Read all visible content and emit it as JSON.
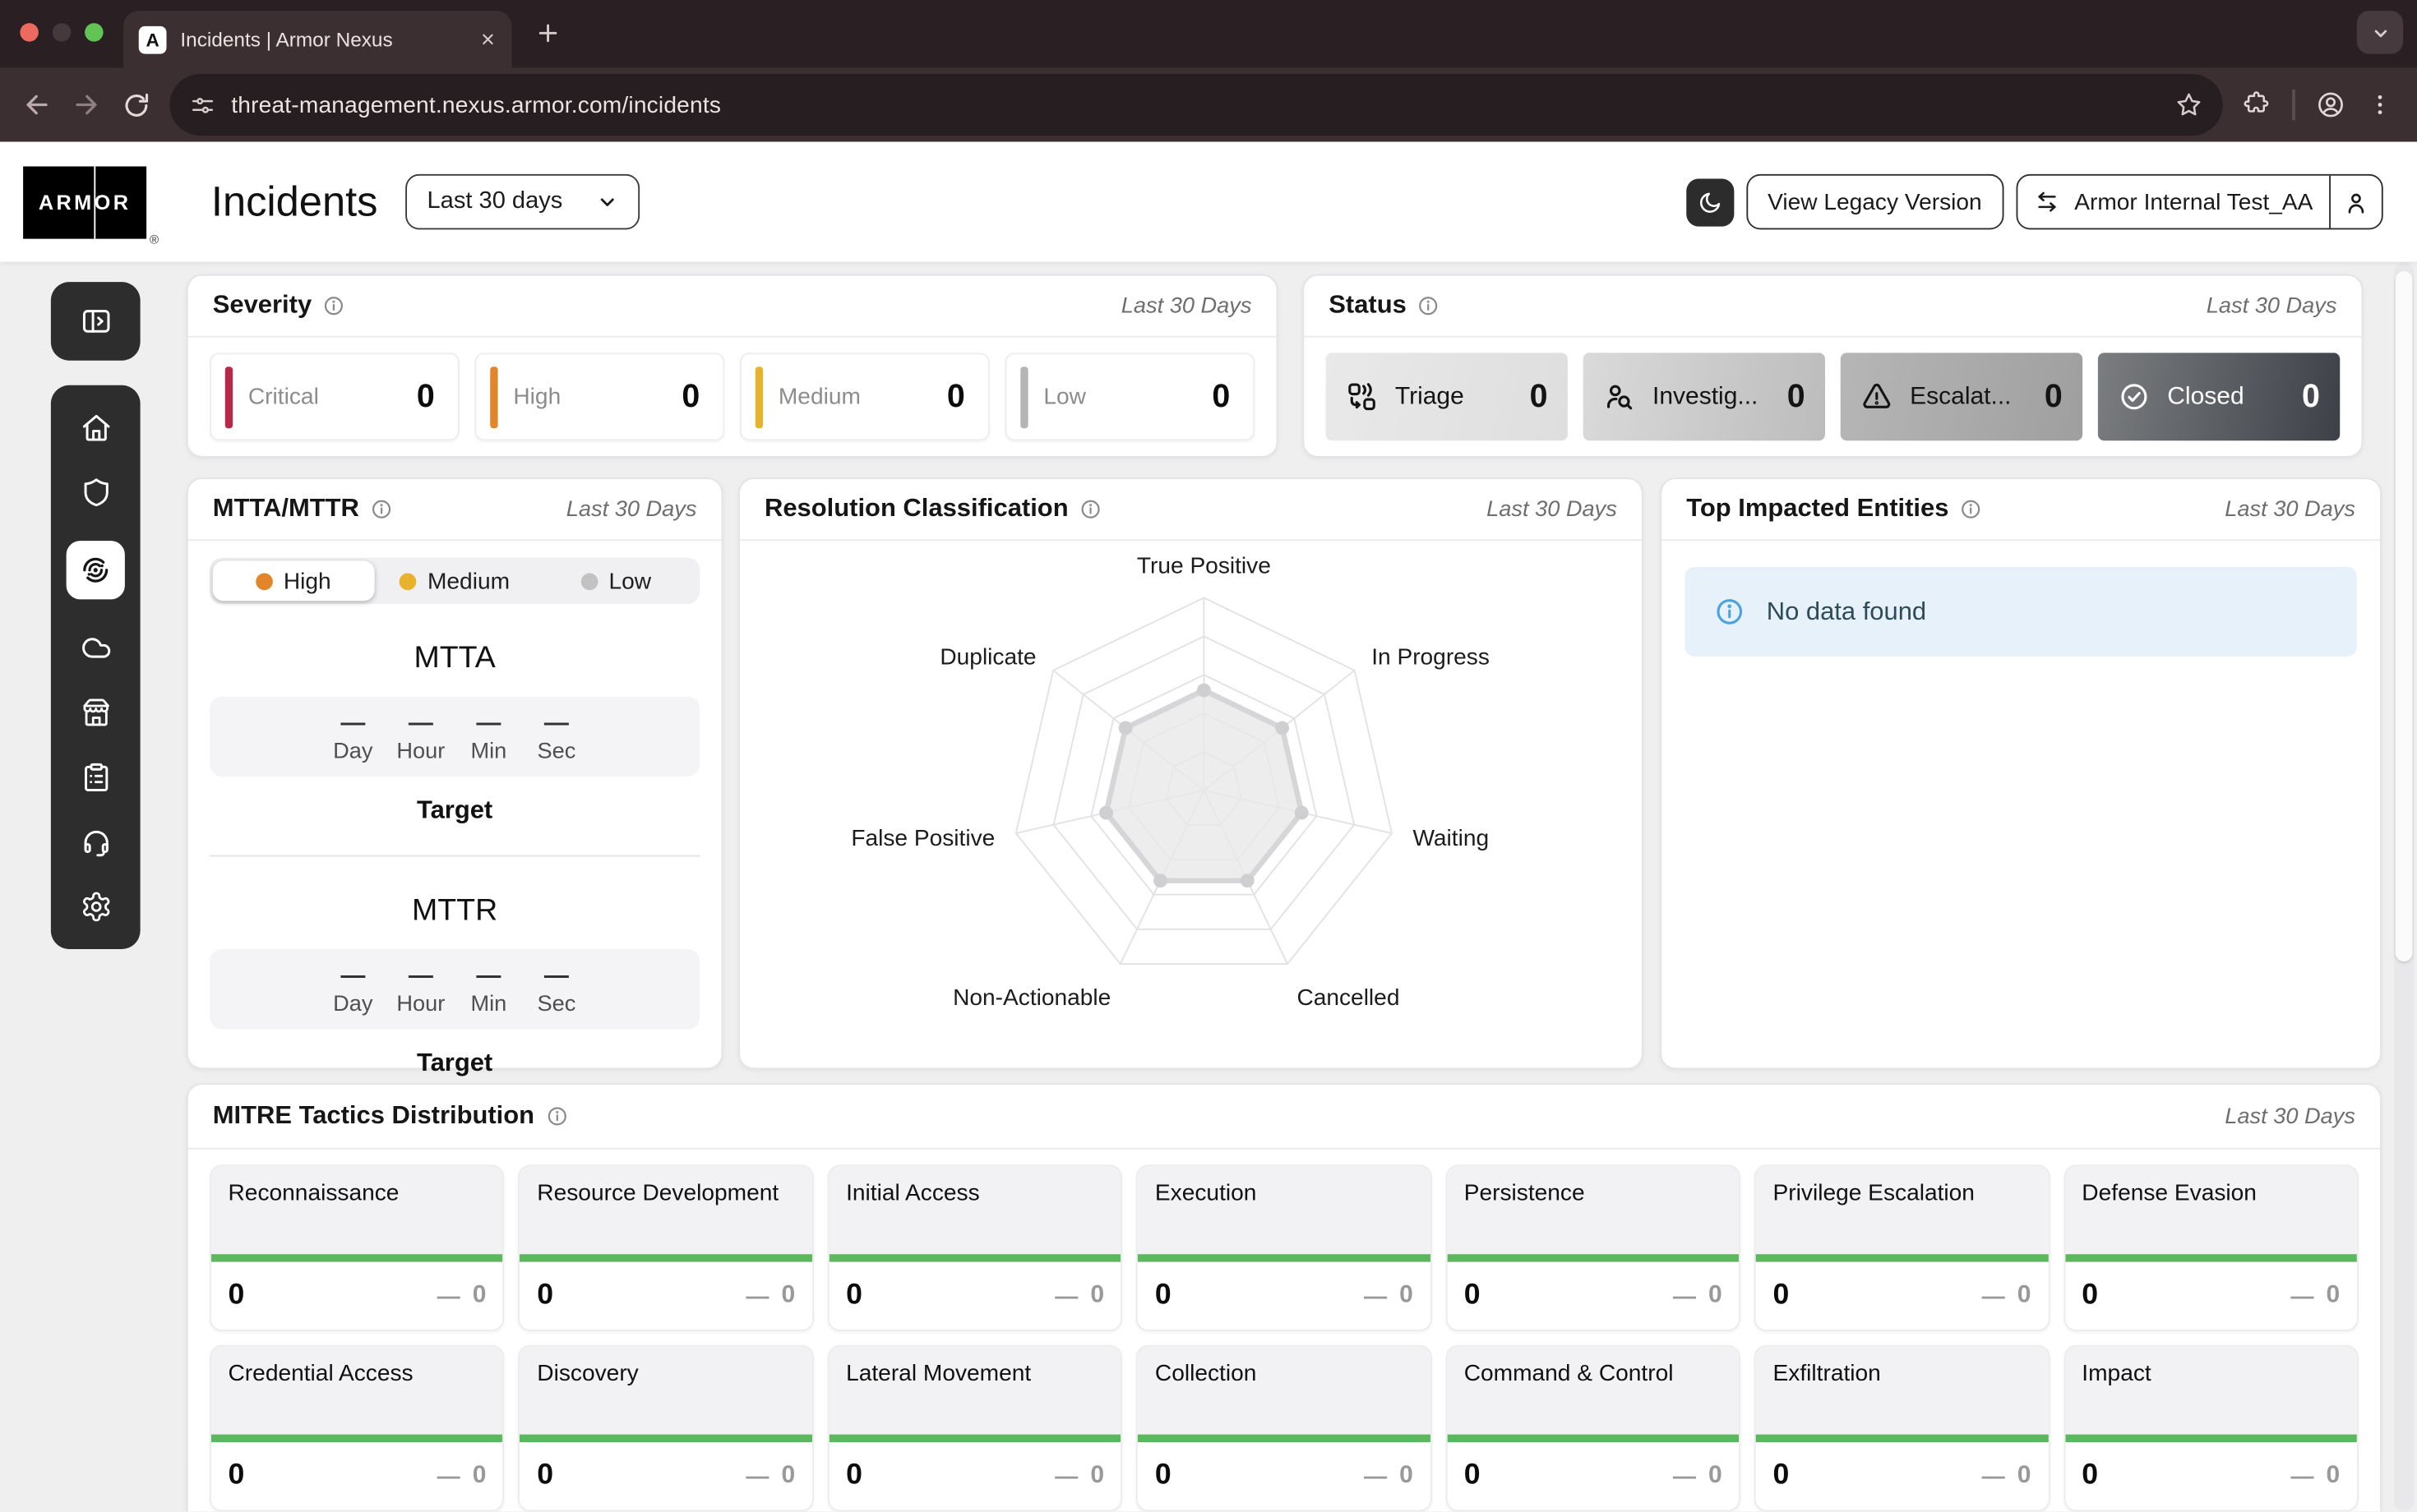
{
  "browser": {
    "tab_title": "Incidents | Armor Nexus",
    "favicon_letter": "A",
    "url": "threat-management.nexus.armor.com/incidents"
  },
  "header": {
    "logo_text": "ARMOR",
    "logo_reg": "®",
    "title": "Incidents",
    "range_selector_label": "Last 30 days",
    "legacy_button_label": "View Legacy Version",
    "account_button_label": "Armor Internal Test_AA"
  },
  "sidebar": {
    "toggle_icon": "panel-expand-icon",
    "items": [
      "home",
      "shield",
      "threat-radar",
      "cloud",
      "marketplace",
      "reports",
      "support",
      "settings"
    ],
    "active_item": "threat-radar"
  },
  "cards": {
    "severity": {
      "title": "Severity",
      "range": "Last 30 Days",
      "items": [
        {
          "label": "Critical",
          "value": "0",
          "color": "#b82847"
        },
        {
          "label": "High",
          "value": "0",
          "color": "#e2862c"
        },
        {
          "label": "Medium",
          "value": "0",
          "color": "#e8b32c"
        },
        {
          "label": "Low",
          "value": "0",
          "color": "#b5b5b5"
        }
      ]
    },
    "status": {
      "title": "Status",
      "range": "Last 30 Days",
      "items": [
        {
          "label": "Triage",
          "value": "0",
          "icon": "triage-icon"
        },
        {
          "label": "Investig...",
          "value": "0",
          "icon": "investigate-icon"
        },
        {
          "label": "Escalat...",
          "value": "0",
          "icon": "escalate-icon"
        },
        {
          "label": "Closed",
          "value": "0",
          "icon": "closed-icon"
        }
      ]
    },
    "mtta_mttr": {
      "title": "MTTA/MTTR",
      "range": "Last 30 Days",
      "empty_value": "—",
      "tabs": [
        {
          "label": "High",
          "color": "#e2862c",
          "selected": true
        },
        {
          "label": "Medium",
          "color": "#e8b32c",
          "selected": false
        },
        {
          "label": "Low",
          "color": "#c2c2c2",
          "selected": false
        }
      ],
      "sections": [
        {
          "title": "MTTA",
          "units": [
            "Day",
            "Hour",
            "Min",
            "Sec"
          ],
          "target_label": "Target"
        },
        {
          "title": "MTTR",
          "units": [
            "Day",
            "Hour",
            "Min",
            "Sec"
          ],
          "target_label": "Target"
        }
      ]
    },
    "resolution": {
      "title": "Resolution Classification",
      "range": "Last 30 Days"
    },
    "entities": {
      "title": "Top Impacted Entities",
      "range": "Last 30 Days",
      "empty_message": "No data found",
      "alert_bg": "#e7f1f9",
      "alert_icon_color": "#4aa3dd"
    },
    "mitre": {
      "title": "MITRE Tactics Distribution",
      "range": "Last 30 Days",
      "bar_color": "#5cb85c",
      "previous_dash": "—",
      "tactics": [
        {
          "name": "Reconnaissance",
          "count": "0",
          "previous": "0"
        },
        {
          "name": "Resource Development",
          "count": "0",
          "previous": "0"
        },
        {
          "name": "Initial Access",
          "count": "0",
          "previous": "0"
        },
        {
          "name": "Execution",
          "count": "0",
          "previous": "0"
        },
        {
          "name": "Persistence",
          "count": "0",
          "previous": "0"
        },
        {
          "name": "Privilege Escalation",
          "count": "0",
          "previous": "0"
        },
        {
          "name": "Defense Evasion",
          "count": "0",
          "previous": "0"
        },
        {
          "name": "Credential Access",
          "count": "0",
          "previous": "0"
        },
        {
          "name": "Discovery",
          "count": "0",
          "previous": "0"
        },
        {
          "name": "Lateral Movement",
          "count": "0",
          "previous": "0"
        },
        {
          "name": "Collection",
          "count": "0",
          "previous": "0"
        },
        {
          "name": "Command & Control",
          "count": "0",
          "previous": "0"
        },
        {
          "name": "Exfiltration",
          "count": "0",
          "previous": "0"
        },
        {
          "name": "Impact",
          "count": "0",
          "previous": "0"
        }
      ]
    }
  },
  "chart_data": {
    "type": "radar",
    "title": "Resolution Classification",
    "axes": [
      "True Positive",
      "In Progress",
      "Waiting",
      "Cancelled",
      "Non-Actionable",
      "False Positive",
      "Duplicate"
    ],
    "series": [
      {
        "name": "Resolution Classification",
        "values": [
          0,
          0,
          0,
          0,
          0,
          0,
          0
        ]
      }
    ],
    "layout": {
      "rings": 5,
      "placeholder_radius_frac": 0.52,
      "grid_color": "#e2e2e4",
      "series_fill": "rgba(232,232,234,0.8)",
      "series_stroke": "#d6d6d8",
      "series_dot": "#cfcfd2",
      "label_color": "#1c1c1c"
    }
  }
}
